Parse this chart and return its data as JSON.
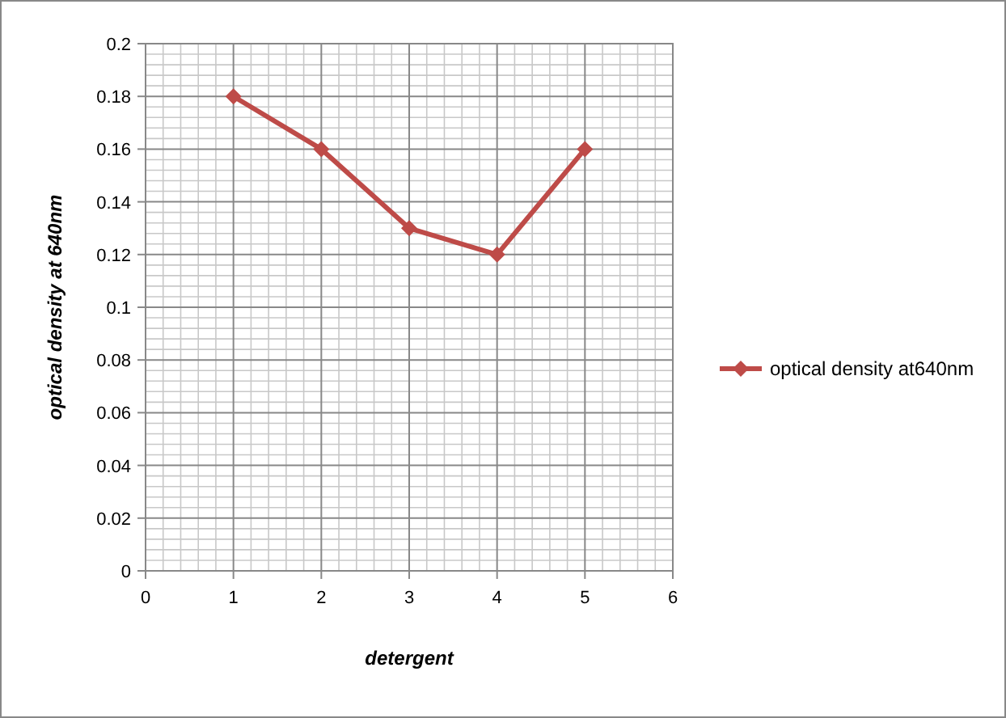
{
  "chart_data": {
    "type": "line",
    "xlabel": "detergent",
    "ylabel": "optical density at 640nm",
    "x": [
      1,
      2,
      3,
      4,
      5
    ],
    "series": [
      {
        "name": "optical density at640nm",
        "color": "#be4b48",
        "values": [
          0.18,
          0.16,
          0.13,
          0.12,
          0.16
        ]
      }
    ],
    "xlim": [
      0,
      6
    ],
    "xticks": [
      0,
      1,
      2,
      3,
      4,
      5,
      6
    ],
    "ylim": [
      0,
      0.2
    ],
    "yticks": [
      0,
      0.02,
      0.04,
      0.06,
      0.08,
      0.1,
      0.12,
      0.14,
      0.16,
      0.18,
      0.2
    ],
    "grid": true,
    "legend": "right",
    "marker": "diamond",
    "line_style": "solid"
  }
}
